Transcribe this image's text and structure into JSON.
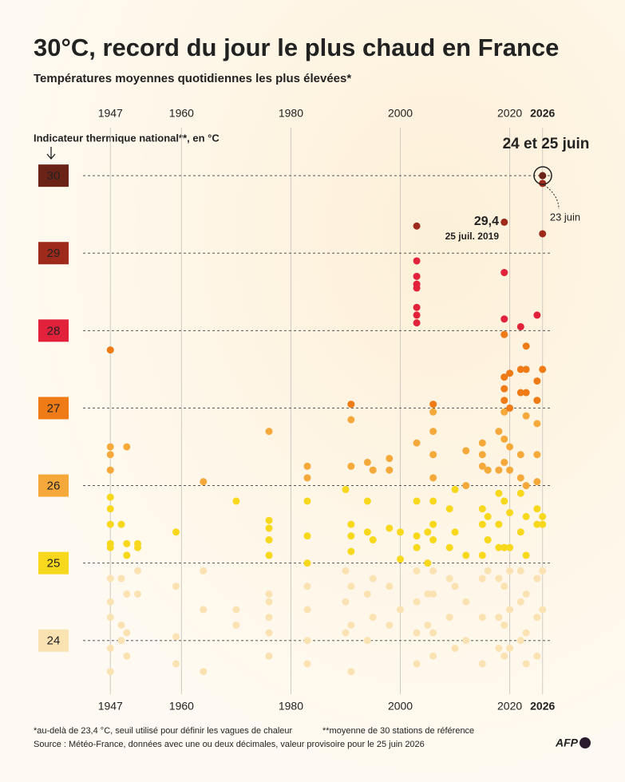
{
  "chart_data": {
    "type": "scatter",
    "title": "30°C, record du jour le plus chaud en France",
    "subtitle": "Températures moyennes quotidiennes les plus élevées*",
    "y_label": "Indicateur thermique national**, en °C",
    "annotations": [
      "24 et 25 juin",
      "29,4",
      "25 juil. 2019",
      "23 juin"
    ],
    "footnotes": [
      "*au-delà de 23,4 °C, seuil utilisé pour définir les vagues de chaleur",
      "**moyenne de 30 stations de référence"
    ],
    "source": "Source : Météo-France, données avec une ou deux décimales, valeur provisoire pour le 25 juin 2026",
    "credit": "AFP",
    "xlim": [
      1942,
      2027.5
    ],
    "xticks": [
      1947,
      1960,
      1980,
      2000,
      2020,
      2026
    ],
    "ylim": [
      23.4,
      30.3
    ],
    "yticks": [
      24,
      25,
      26,
      27,
      28,
      29,
      30
    ],
    "band_colors": [
      "#fbe2b3",
      "#f8d81c",
      "#f6a93b",
      "#ee7b16",
      "#e2213a",
      "#9e2a1c",
      "#6b2318"
    ],
    "grid": true,
    "points": [
      {
        "x": 1947,
        "y": [
          27.75,
          26.5,
          26.4,
          26.2,
          25.85,
          25.7,
          25.5,
          25.25,
          25.2,
          24.8,
          24.5,
          24.3,
          23.9,
          23.6
        ]
      },
      {
        "x": 1949,
        "y": [
          25.5,
          24.8,
          24.2,
          24.0
        ]
      },
      {
        "x": 1950,
        "y": [
          26.5,
          25.25,
          25.1,
          24.6,
          24.1,
          23.8
        ]
      },
      {
        "x": 1952,
        "y": [
          25.2,
          25.25,
          24.9,
          24.6
        ]
      },
      {
        "x": 1959,
        "y": [
          25.4,
          24.7,
          24.05,
          23.7
        ]
      },
      {
        "x": 1964,
        "y": [
          26.05,
          24.9,
          24.4,
          23.6
        ]
      },
      {
        "x": 1970,
        "y": [
          25.8,
          24.4,
          24.2
        ]
      },
      {
        "x": 1976,
        "y": [
          26.7,
          25.55,
          25.45,
          25.3,
          25.1,
          24.6,
          24.5,
          24.3,
          24.1,
          23.8
        ]
      },
      {
        "x": 1983,
        "y": [
          26.25,
          26.1,
          25.8,
          25.35,
          25.0,
          24.7,
          24.4,
          24.0,
          23.7
        ]
      },
      {
        "x": 1990,
        "y": [
          25.95,
          24.9,
          24.5,
          24.1
        ]
      },
      {
        "x": 1991,
        "y": [
          27.05,
          26.85,
          26.25,
          25.5,
          25.35,
          25.15,
          24.7,
          24.2,
          23.6
        ]
      },
      {
        "x": 1994,
        "y": [
          26.3,
          25.8,
          25.4,
          24.6,
          24.0
        ]
      },
      {
        "x": 1995,
        "y": [
          26.2,
          25.3,
          24.8,
          24.3
        ]
      },
      {
        "x": 1998,
        "y": [
          26.35,
          26.2,
          25.45,
          24.7,
          24.2
        ]
      },
      {
        "x": 2000,
        "y": [
          25.4,
          25.05,
          24.4
        ]
      },
      {
        "x": 2003,
        "y": [
          29.35,
          28.9,
          28.7,
          28.6,
          28.55,
          28.3,
          28.2,
          28.1,
          26.55,
          25.8,
          25.35,
          25.2,
          24.9,
          24.5,
          24.1,
          23.7
        ]
      },
      {
        "x": 2005,
        "y": [
          25.4,
          25.0,
          24.6,
          24.2
        ]
      },
      {
        "x": 2006,
        "y": [
          27.05,
          26.95,
          26.7,
          26.4,
          26.1,
          25.8,
          25.5,
          25.3,
          24.9,
          24.6,
          24.1,
          23.8
        ]
      },
      {
        "x": 2009,
        "y": [
          25.7,
          25.2,
          24.8,
          24.3
        ]
      },
      {
        "x": 2010,
        "y": [
          25.95,
          25.4,
          24.7,
          23.9
        ]
      },
      {
        "x": 2012,
        "y": [
          26.45,
          26.0,
          25.1,
          24.5,
          24.0
        ]
      },
      {
        "x": 2015,
        "y": [
          26.55,
          26.4,
          26.25,
          25.7,
          25.5,
          25.1,
          24.8,
          24.3,
          23.7
        ]
      },
      {
        "x": 2016,
        "y": [
          26.2,
          25.6,
          25.3,
          24.9
        ]
      },
      {
        "x": 2018,
        "y": [
          26.7,
          26.2,
          25.9,
          25.5,
          25.2,
          24.8,
          24.3,
          23.9
        ]
      },
      {
        "x": 2019,
        "y": [
          29.4,
          28.75,
          28.15,
          27.95,
          27.4,
          27.25,
          27.1,
          26.95,
          26.6,
          26.3,
          25.8,
          25.2,
          24.7,
          24.2,
          23.8
        ]
      },
      {
        "x": 2020,
        "y": [
          27.45,
          27.0,
          26.5,
          26.2,
          25.65,
          25.2,
          24.9,
          24.4,
          23.9
        ]
      },
      {
        "x": 2022,
        "y": [
          28.05,
          27.5,
          27.2,
          26.4,
          26.1,
          25.9,
          25.4,
          24.9,
          24.5,
          24.0
        ]
      },
      {
        "x": 2023,
        "y": [
          27.8,
          27.5,
          27.2,
          26.9,
          26.0,
          25.6,
          25.1,
          24.6,
          24.1,
          23.7
        ]
      },
      {
        "x": 2025,
        "y": [
          28.2,
          27.35,
          27.1,
          26.8,
          26.4,
          26.05,
          25.7,
          25.5,
          24.8,
          24.3,
          23.8
        ]
      },
      {
        "x": 2026,
        "y": [
          30.0,
          30.0,
          29.9,
          29.25,
          27.5,
          25.6,
          25.5,
          24.9,
          24.4
        ]
      }
    ]
  }
}
